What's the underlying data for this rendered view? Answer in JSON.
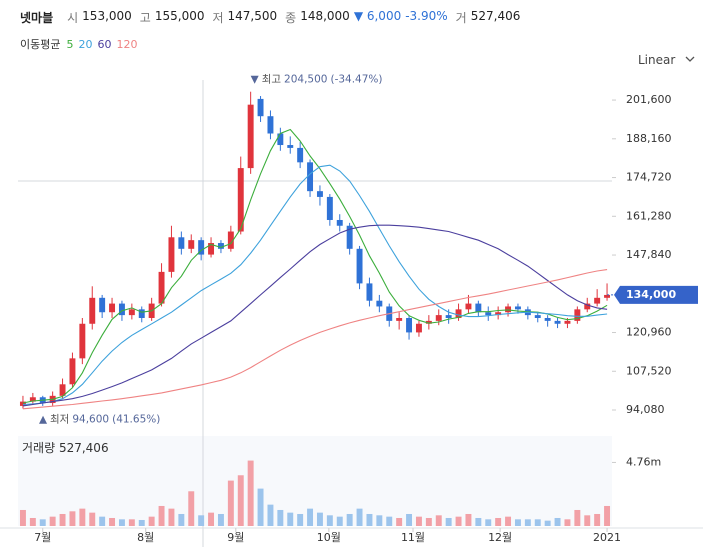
{
  "header": {
    "name": "넷마블",
    "open_label": "시",
    "open": "153,000",
    "high_label": "고",
    "high": "155,000",
    "low_label": "저",
    "low": "147,500",
    "close_label": "종",
    "close": "148,000",
    "change": "▼ 6,000",
    "change_pct": "-3.90%",
    "volume_label": "거",
    "volume": "527,406"
  },
  "chart_data": {
    "type": "candlestick",
    "scale": "Linear",
    "ma_label": "이동평균",
    "up_color": "#e0343c",
    "down_color": "#2f72d6",
    "open": [
      95500,
      97000,
      98500,
      96500,
      99000,
      103000,
      112000,
      124000,
      133000,
      128000,
      131000,
      127000,
      129000,
      126000,
      131000,
      142000,
      154000,
      150000,
      153000,
      148000,
      152000,
      150000,
      156000,
      178000,
      202000,
      196000,
      190000,
      186000,
      185000,
      180000,
      170000,
      168000,
      160000,
      158000,
      150000,
      138000,
      132000,
      130000,
      125000,
      126000,
      121000,
      124000,
      125000,
      127000,
      126000,
      129000,
      131000,
      128000,
      127000,
      128000,
      130000,
      129000,
      127000,
      126000,
      125000,
      124000,
      125000,
      129000,
      131000,
      133000
    ],
    "high": [
      99000,
      100000,
      99000,
      100500,
      105000,
      114000,
      126000,
      137000,
      134000,
      133000,
      132000,
      131000,
      130000,
      133000,
      145000,
      158000,
      156000,
      155000,
      154000,
      154000,
      153000,
      158000,
      182000,
      204500,
      203000,
      198000,
      192000,
      189000,
      187000,
      181000,
      172000,
      169000,
      162000,
      159000,
      151000,
      140000,
      134000,
      131000,
      128000,
      127000,
      125000,
      127000,
      129000,
      129000,
      131000,
      134000,
      132000,
      130000,
      130000,
      131000,
      131000,
      130000,
      128000,
      127000,
      126000,
      126000,
      130000,
      133000,
      136000,
      138000
    ],
    "low": [
      94600,
      96000,
      95500,
      95500,
      98000,
      102000,
      110000,
      122000,
      126000,
      126000,
      125000,
      125500,
      124500,
      125000,
      130000,
      140000,
      148000,
      148500,
      146000,
      147000,
      148500,
      149000,
      155000,
      176000,
      194000,
      188000,
      184000,
      183000,
      178000,
      168000,
      165000,
      158000,
      156000,
      148000,
      136000,
      130000,
      128000,
      123000,
      122000,
      118500,
      119500,
      122000,
      123500,
      124000,
      125000,
      127500,
      126500,
      125000,
      125500,
      126500,
      127500,
      125500,
      124500,
      123000,
      122500,
      122500,
      124000,
      128000,
      130000,
      132000
    ],
    "close": [
      97000,
      98500,
      96500,
      99000,
      103000,
      112000,
      124000,
      133000,
      128000,
      131000,
      127000,
      129000,
      126000,
      131000,
      142000,
      154000,
      150000,
      153000,
      148000,
      152000,
      150000,
      156000,
      178000,
      200000,
      196000,
      190000,
      186000,
      185000,
      180000,
      170000,
      168000,
      160000,
      158000,
      150000,
      138000,
      132000,
      130000,
      125000,
      126000,
      121000,
      124000,
      125000,
      127000,
      126000,
      129000,
      131000,
      128000,
      127000,
      128000,
      130000,
      129000,
      127000,
      126000,
      125000,
      124000,
      125000,
      129000,
      131000,
      133000,
      134000
    ],
    "series": [
      {
        "name": "5",
        "color": "#3cae3c",
        "values": [
          96500,
          97200,
          97500,
          97800,
          98800,
          101800,
          107000,
          114000,
          120000,
          125500,
          128500,
          129500,
          128000,
          128500,
          131000,
          136500,
          140500,
          146000,
          149500,
          151500,
          150500,
          151800,
          157000,
          167000,
          176000,
          184000,
          190000,
          191400,
          187400,
          182200,
          177800,
          172600,
          167200,
          161200,
          154800,
          147600,
          141600,
          135000,
          130200,
          126800,
          125200,
          124200,
          124600,
          125600,
          126200,
          127600,
          128200,
          128200,
          128600,
          128800,
          128400,
          128200,
          128000,
          127400,
          126200,
          125400,
          125800,
          126800,
          128400,
          130400
        ]
      },
      {
        "name": "20",
        "color": "#3ea2dc",
        "values": [
          96000,
          96200,
          96500,
          97000,
          98000,
          100000,
          103000,
          107000,
          111000,
          114500,
          117500,
          120000,
          122000,
          124000,
          126000,
          128000,
          130500,
          133000,
          135500,
          137500,
          139500,
          141500,
          144500,
          148500,
          153000,
          158000,
          163000,
          168000,
          172500,
          176000,
          178500,
          179000,
          177000,
          173500,
          168500,
          163000,
          157000,
          151000,
          145500,
          140500,
          136000,
          132500,
          130000,
          128000,
          127000,
          126500,
          126500,
          126800,
          127200,
          127500,
          127800,
          128000,
          127800,
          127500,
          127200,
          126800,
          126600,
          126600,
          127000,
          127400
        ]
      },
      {
        "name": "60",
        "color": "#4b3f9e",
        "values": [
          95500,
          96000,
          96500,
          97000,
          97500,
          98000,
          98800,
          99800,
          101000,
          102200,
          103500,
          105000,
          106500,
          108000,
          110000,
          112000,
          114500,
          117000,
          119000,
          121000,
          123000,
          125000,
          128000,
          131000,
          134000,
          137000,
          140000,
          143000,
          146000,
          149000,
          151500,
          153500,
          155500,
          156800,
          157500,
          158000,
          158200,
          158200,
          158000,
          157800,
          157500,
          157000,
          156500,
          156000,
          155000,
          154000,
          153000,
          151500,
          150000,
          148000,
          146000,
          144000,
          141500,
          139000,
          136500,
          134000,
          132000,
          130500,
          129500,
          129000
        ]
      },
      {
        "name": "120",
        "color": "#ef8383",
        "values": [
          94500,
          94800,
          95100,
          95400,
          95700,
          96000,
          96400,
          96800,
          97200,
          97600,
          98000,
          98500,
          99000,
          99500,
          100000,
          100700,
          101400,
          102100,
          102800,
          103600,
          104400,
          105500,
          107000,
          108800,
          110800,
          112800,
          114800,
          116600,
          118200,
          119700,
          121000,
          122200,
          123300,
          124300,
          125200,
          126000,
          126800,
          127500,
          128200,
          128900,
          129600,
          130300,
          131000,
          131700,
          132400,
          133100,
          133700,
          134300,
          135000,
          135700,
          136400,
          137100,
          137800,
          138500,
          139200,
          140000,
          140800,
          141600,
          142300,
          142800
        ]
      }
    ],
    "ylim": [
      87840,
      208560
    ],
    "yticks": [
      {
        "value": 94080,
        "label": "94,080"
      },
      {
        "value": 107520,
        "label": "107,520"
      },
      {
        "value": 120960,
        "label": "120,960"
      },
      {
        "value": 147840,
        "label": "147,840"
      },
      {
        "value": 161280,
        "label": "161,280"
      },
      {
        "value": 174720,
        "label": "174,720"
      },
      {
        "value": 188160,
        "label": "188,160"
      },
      {
        "value": 201600,
        "label": "201,600"
      }
    ],
    "xlim": [
      -0.5,
      59.5
    ],
    "xticks": [
      {
        "value": 2,
        "label": "7월"
      },
      {
        "value": 12.4,
        "label": "8월"
      },
      {
        "value": 21.5,
        "label": "9월"
      },
      {
        "value": 30.9,
        "label": "10월"
      },
      {
        "value": 39.4,
        "label": "11월"
      },
      {
        "value": 48.2,
        "label": "12월"
      },
      {
        "value": 59,
        "label": "2021"
      }
    ],
    "last_price": {
      "value": 134000,
      "label": "134,000"
    },
    "max_annotation": {
      "marker": "▼",
      "label": "최고",
      "value": 204500,
      "value_label": "204,500",
      "change": "(-34.47%)"
    },
    "min_annotation": {
      "marker": "▲",
      "label": "최저",
      "value": 94600,
      "value_label": "94,600",
      "change": "(41.65%)"
    },
    "volume": {
      "label": "거래량",
      "value_label": "527,406",
      "up_color": "#f2a0a6",
      "down_color": "#9cc4ec",
      "values": [
        1200000,
        600000,
        500000,
        700000,
        900000,
        1100000,
        1300000,
        1000000,
        700000,
        600000,
        500000,
        500000,
        450000,
        700000,
        1500000,
        1300000,
        900000,
        2600000,
        800000,
        1000000,
        900000,
        3400000,
        3800000,
        4900000,
        2800000,
        1600000,
        1200000,
        1000000,
        900000,
        1300000,
        1000000,
        800000,
        700000,
        900000,
        1300000,
        900000,
        800000,
        700000,
        600000,
        900000,
        700000,
        600000,
        800000,
        600000,
        700000,
        900000,
        600000,
        500000,
        600000,
        700000,
        500000,
        500000,
        500000,
        400000,
        600000,
        500000,
        1200000,
        800000,
        900000,
        1500000
      ],
      "ylim": [
        0,
        6740000
      ],
      "yticks": [
        {
          "value": 4760000,
          "label": "4.76m"
        }
      ]
    }
  }
}
